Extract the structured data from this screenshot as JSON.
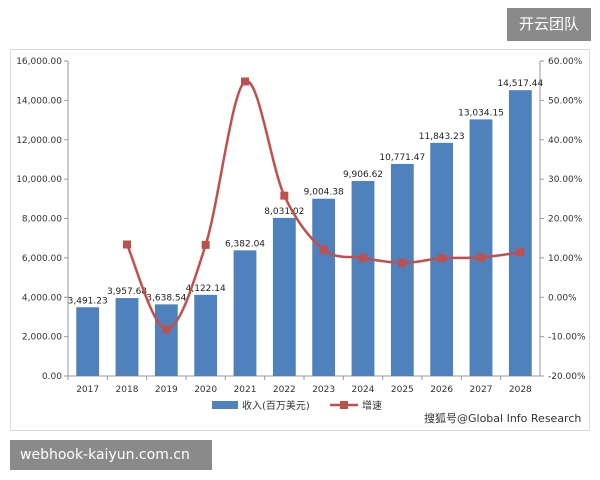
{
  "overlay": {
    "badge": "开云团队",
    "url": "webhook-kaiyun.com.cn",
    "watermark": "搜狐号@Global Info Research"
  },
  "colors": {
    "bar": "#4f81bd",
    "line": "#c0504d"
  },
  "chart_data": {
    "type": "bar",
    "categories": [
      "2017",
      "2018",
      "2019",
      "2020",
      "2021",
      "2022",
      "2023",
      "2024",
      "2025",
      "2026",
      "2027",
      "2028"
    ],
    "series": [
      {
        "name": "收入(百万美元)",
        "type": "bar",
        "axis": "left",
        "values": [
          3491.23,
          3957.68,
          3638.54,
          4122.14,
          6382.04,
          8031.02,
          9004.38,
          9906.62,
          10771.47,
          11843.23,
          13034.15,
          14517.44
        ],
        "labels": [
          "3,491.23",
          "3,957.68",
          "3,638.54",
          "4,122.14",
          "6,382.04",
          "8,031.02",
          "9,004.38",
          "9,906.62",
          "10,771.47",
          "11,843.23",
          "13,034.15",
          "14,517.44"
        ]
      },
      {
        "name": "增速",
        "type": "line",
        "axis": "right",
        "smooth": true,
        "values": [
          null,
          13.4,
          -8.1,
          13.3,
          54.8,
          25.8,
          12.1,
          10.0,
          8.7,
          9.9,
          10.1,
          11.4
        ]
      }
    ],
    "ylim": [
      0,
      16000
    ],
    "yticks": [
      "0.00",
      "2,000.00",
      "4,000.00",
      "6,000.00",
      "8,000.00",
      "10,000.00",
      "12,000.00",
      "14,000.00",
      "16,000.00"
    ],
    "y2lim": [
      -20,
      60
    ],
    "y2ticks": [
      "-20.00%",
      "-10.00%",
      "0.00%",
      "10.00%",
      "20.00%",
      "30.00%",
      "40.00%",
      "50.00%",
      "60.00%"
    ],
    "legend_position": "bottom-center"
  }
}
